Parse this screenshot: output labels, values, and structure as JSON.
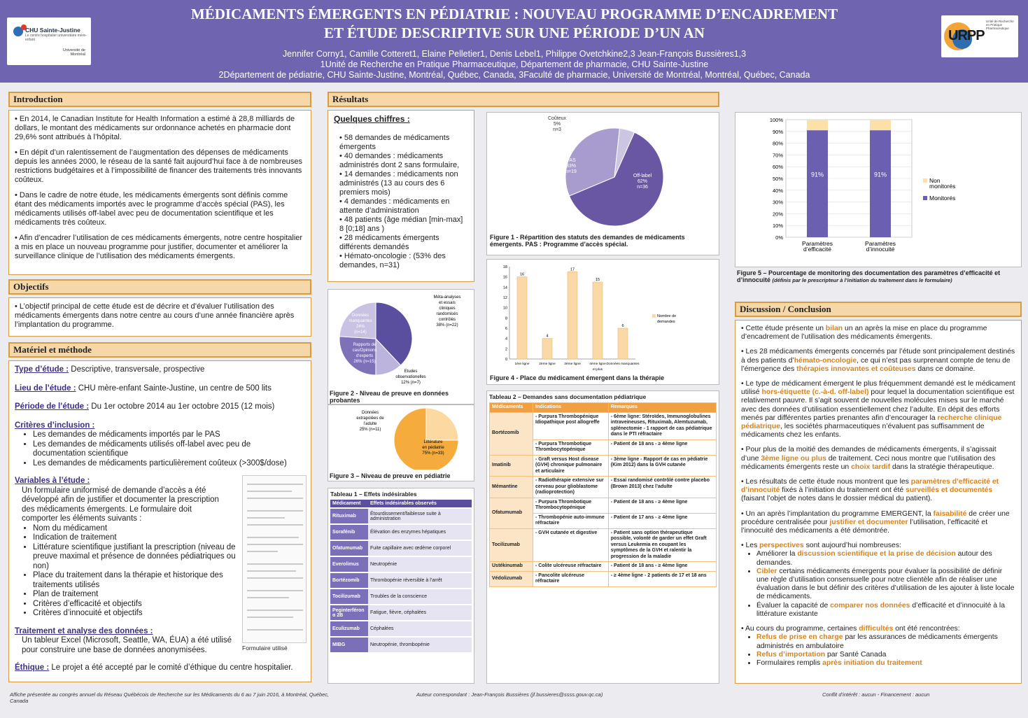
{
  "header": {
    "title_line1": "MÉDICAMENTS ÉMERGENTS EN PÉDIATRIE : NOUVEAU PROGRAMME D’ENCADREMENT",
    "title_line2": "ET ÉTUDE DESCRIPTIVE SUR UNE PÉRIODE D’UN AN",
    "authors": "Jennifer Corny1, Camille Cotteret1, Elaine Pelletier1, Denis Lebel1, Philippe Ovetchkine2,3 Jean-François Bussières1,3",
    "affil1": "1Unité de Recherche en Pratique Pharmaceutique, Département de pharmacie, CHU Sainte-Justine",
    "affil2": "2Département de pédiatrie, CHU Sainte-Justine, Montréal, Québec, Canada,  3Faculté de pharmacie, Université de Montréal, Montréal, Québec, Canada",
    "logo_left_name": "CHU Sainte-Justine",
    "logo_left_sub": "Le centre hospitalier universitaire mère-enfant",
    "logo_left_univ": "Université de Montréal",
    "logo_right_text": "URPP",
    "logo_right_sub": "Unité de Recherche en Pratique Pharmaceutique"
  },
  "intro": {
    "heading": "Introduction",
    "p1": "• En 2014, le Canadian Institute for Health Information a estimé à 28,8 milliards de dollars, le montant des médicaments sur ordonnance achetés en pharmacie dont 29,6% sont attribués à l’hôpital.",
    "p2": "• En dépit d’un ralentissement de l’augmentation des dépenses de médicaments depuis les années 2000, le réseau de la santé fait aujourd’hui face à de nombreuses restrictions budgétaires et à l’impossibilité de financer des traitements très innovants coûteux.",
    "p3": "• Dans le cadre de notre étude, les médicaments émergents sont définis comme étant des médicaments importés avec le programme d’accès spécial (PAS), les médicaments utilisés off-label avec peu de documentation scientifique et les médicaments très coûteux.",
    "p4": "• Afin d’encadrer l’utilisation de ces médicaments émergents, notre centre hospitalier a mis en place un nouveau programme pour justifier, documenter et améliorer la surveillance clinique de l’utilisation des médicaments émergents."
  },
  "objectifs": {
    "heading": "Objectifs",
    "p1": "• L’objectif principal de cette étude est de décrire et d’évaluer l’utilisation des médicaments émergents dans notre centre au cours d’une année financière après l’implantation du programme."
  },
  "methode": {
    "heading": "Matériel et méthode",
    "type_label": "Type d’étude :",
    "type_val": " Descriptive, transversale, prospective",
    "lieu_label": "Lieu de l’étude :",
    "lieu_val": " CHU mère-enfant Sainte-Justine, un centre de 500 lits",
    "periode_label": "Période de l’étude :",
    "periode_val": " Du 1er octobre 2014 au 1er octobre 2015 (12 mois)",
    "criteres_label": "Critères d’inclusion :",
    "crit1": "Les demandes de médicaments importés par le PAS",
    "crit2": "Les demandes de médicaments utilisés off-label avec peu de documentation scientifique",
    "crit3": "Les demandes de médicaments particulièrement coûteux (>300$/dose)",
    "variables_label": "Variables à l’étude :",
    "variables_intro": "Un formulaire uniformisé de demande d’accès a été développé afin de justifier et documenter la prescription des médicaments émergents. Le formulaire doit comporter les éléments suivants :",
    "var_items": [
      "Nom du médicament",
      "Indication de traitement",
      "Littérature scientifique justifiant la prescription (niveau de preuve maximal et présence de données pédiatriques ou non)",
      "Place du traitement dans la thérapie et historique des traitements utilisés",
      "Plan de traitement",
      "Critères d’efficacité et objectifs",
      "Critères d’innocuité et objectifs"
    ],
    "form_caption": "Formulaire utilisé",
    "traitement_label": "Traitement et analyse des données :",
    "traitement_val": "Un tableur Excel (Microsoft, Seattle, WA, ÉUA) a été utilisé pour construire une base de données anonymisées.",
    "ethique_label": "Éthique :",
    "ethique_val": " Le projet a été accepté par le comité d’éthique du centre hospitalier."
  },
  "resultats": {
    "heading": "Résultats",
    "chiffres_title": "Quelques chiffres :",
    "chiffres": [
      "58 demandes de médicaments émergents",
      "40 demandes : médicaments administrés dont 2 sans formulaire,",
      "14 demandes : médicaments non administrés (13 au cours des 6 premiers mois)",
      "4 demandes : médicaments en attente d’administration",
      "48 patients (âge médian [min-max] 8 [0;18] ans )",
      "28 médicaments émergents différents demandés",
      "Hémato-oncologie : (53% des demandes, n=31)"
    ]
  },
  "fig1": {
    "caption": "Figure 1 - Répartition des statuts des demandes de médicaments émergents. PAS : Programme d’accès spécial.",
    "labels": [
      "Off-label\n62%\nn=36",
      "PAS\n33%\nn=19",
      "Coûteux\n5%\nn=3"
    ]
  },
  "fig2": {
    "caption": "Figure 2 - Niveau de preuve en données probantes",
    "labels": [
      "Méta-analyses et essais cliniques randomisés contrôlés 38% (n=22)",
      "Etudes observationelles 12% (n=7)",
      "Rapports de cas/Opinions d’experts 26% (n=15)",
      "Données manquantes 24% (n=14)"
    ]
  },
  "fig3": {
    "caption": "Figure 3 – Niveau de preuve en pédiatrie",
    "labels": [
      "Données extrapolées de l’adulte 25% (n=11)",
      "Littérature en pédiatrie 75% (n=33)"
    ]
  },
  "fig4": {
    "caption": "Figure 4 - Place du médicament émergent dans la thérapie",
    "legend": "Nombre de demandes"
  },
  "fig5": {
    "caption_bold": "Figure 5 – Pourcentage de monitoring des documentation des paramètres d’efficacité et d’innocuité",
    "caption_ital": "(définis par le prescripteur à l’initiation du traitement dans le formulaire)",
    "legend_non": "Non monitorés",
    "legend_mon": "Monitorés"
  },
  "tableau1": {
    "title": "Tableau 1 – Effets indésirables",
    "headers": [
      "Médicament",
      "Effets indésirables observés"
    ],
    "rows": [
      [
        "Rituximab",
        "Étourdissement/faiblesse suite à administration"
      ],
      [
        "Sorafénib",
        "Élévation des enzymes hépatiques"
      ],
      [
        "Ofatumumab",
        "Fuite capillaire avec œdème corporel"
      ],
      [
        "Everolimus",
        "Neutropénie"
      ],
      [
        "Bortézomib",
        "Thrombopénie réversible à l’arrêt"
      ],
      [
        "Tocilizumab",
        "Troubles de la conscience"
      ],
      [
        "Peginterféron α 2B",
        "Fatigue, fièvre, céphalées"
      ],
      [
        "Eculizumab",
        "Céphalées"
      ],
      [
        "MIBG",
        "Neutropénie, thrombopénie"
      ]
    ]
  },
  "tableau2": {
    "title": "Tableau 2 – Demandes sans documentation pédiatrique",
    "headers": [
      "Médicaments",
      "Indications",
      "Remarques"
    ],
    "rows": [
      [
        "Bortézomib",
        "- Purpura Thrombopénique Idiopathique post allogreffe",
        "- 6ème ligne: Stéroïdes, Immunoglobulines intraveineuses, Rituximab, Alemtuzumab, splénectomie - 1 rapport de cas pédiatrique dans le PTI réfractaire"
      ],
      [
        "",
        "- Purpura Thrombotique Thrombocytopénique",
        "- Patient de 18 ans - ≥ 4ème ligne"
      ],
      [
        "Imatinib",
        "- Graft versus Host disease (GVH) chronique pulmonaire et articulaire",
        "- 3ème ligne - Rapport de cas en pédiatrie (Kim 2012) dans la GVH cutanée"
      ],
      [
        "Mémantine",
        "- Radiothérapie extensive sur cerveau pour glioblastome (radioprotection)",
        "- Essai randomisé contrôlé contre placebo (Brown 2013) chez l’adulte"
      ],
      [
        "Ofatumumab",
        "- Purpura Thrombotique Thrombocytopénique",
        "- Patient de 18 ans - ≥ 4ème ligne"
      ],
      [
        "",
        "- Thrombopénie auto-immune réfractaire",
        "- Patient de 17 ans - ≥ 4ème ligne"
      ],
      [
        "Tocilizumab",
        "- GVH cutanée et digestive",
        "- Patient sans option thérapeutique possible, volonté de garder un effet Graft versus Leukemia en coupant les symptômes de la GVH et ralentir la progression de la maladie"
      ],
      [
        "Ustékinumab",
        "- Colite ulcéreuse réfractaire",
        "- Patient de 18 ans - ≥ 4ème ligne"
      ],
      [
        "Védolizumab",
        "- Pancolite ulcéreuse réfractaire",
        "- ≥ 4ème ligne - 2 patients de 17 et 18 ans"
      ]
    ]
  },
  "discussion": {
    "heading": "Discussion / Conclusion",
    "p1a": "• Cette étude présente un ",
    "p1b": "bilan",
    "p1c": " un an après la mise en place du programme d’encadrement de l’utilisation des médicaments émergents.",
    "p2a": "• Les 28 médicaments émergents concernés par l’étude sont principalement destinés à des patients d’",
    "p2b": "hémato-oncologie",
    "p2c": ", ce qui n’est pas surprenant compte de tenu de l’émergence des ",
    "p2d": "thérapies innovantes et coûteuses",
    "p2e": " dans ce domaine.",
    "p3a": "• Le type de médicament émergent le plus fréquemment demandé est le médicament utilisé ",
    "p3b": "hors-étiquette (c.-à-d. off-label)",
    "p3c": " pour lequel la documentation scientifique est relativement pauvre. Il s’agit souvent de nouvelles molécules mises sur le marché avec des données d’utilisation essentiellement chez l’adulte. En dépit des efforts menés par différentes parties prenantes afin d’encourager la ",
    "p3d": "recherche clinique pédiatrique",
    "p3e": ", les sociétés pharmaceutiques n’évaluent pas suffisamment de médicaments chez les enfants.",
    "p4a": "• Pour plus de la moitié des demandes de médicaments émergents, il s’agissait d’une ",
    "p4b": "3ème ligne ou plus",
    "p4c": " de traitement. Ceci nous montre que l’utilisation des médicaments émergents reste un ",
    "p4d": "choix tardif",
    "p4e": " dans la stratégie thérapeutique.",
    "p5a": "• Les résultats de cette étude nous montrent que les ",
    "p5b": "paramètres d’efficacité et d’innocuité",
    "p5c": " fixés à l’initiation du traitement ont été ",
    "p5d": "surveillés et documentés",
    "p5e": " (faisant l’objet de notes dans le dossier médical du patient).",
    "p6a": "• Un an après l’implantation du programme EMERGENT, la ",
    "p6b": "faisabilité",
    "p6c": " de créer une procédure centralisée pour ",
    "p6d": "justifier et documenter",
    "p6e": " l’utilisation, l’efficacité et l’innocuité des médicaments a été démontrée.",
    "p7a": "• Les ",
    "p7b": "perspectives",
    "p7c": " sont aujourd’hui nombreuses:",
    "p7_1a": "Améliorer la ",
    "p7_1b": "discussion scientifique et la prise de décision",
    "p7_1c": " autour des demandes.",
    "p7_2a": "",
    "p7_2b": "Cibler",
    "p7_2c": " certains médicaments émergents pour évaluer la possibilité de définir une règle d’utilisation consensuelle pour notre clientèle afin de réaliser une évaluation dans le but définir des critères d’utilisation de les ajouter à liste locale de médicaments.",
    "p7_3a": "Évaluer la capacité de ",
    "p7_3b": "comparer nos données",
    "p7_3c": " d’efficacité et d’innocuité à la littérature existante",
    "p8a": "• Au cours du programme, certaines ",
    "p8b": "difficultés",
    "p8c": " ont été rencontrées:",
    "p8_1b": "Refus de prise en charge",
    "p8_1c": " par les assurances de médicaments émergents administrés en ambulatoire",
    "p8_2b": "Refus d’importation",
    "p8_2c": " par Santé Canada",
    "p8_3a": "Formulaires remplis ",
    "p8_3b": "après initiation du traitement"
  },
  "footer": {
    "left": "Affiche présentée au congrès annuel du Réseau Québécois de Recherche sur les Médicaments du 6 au 7 juin 2016, à Montréal, Québec, Canada",
    "mid": "Auteur correspondant : Jean-François Bussières (jf.bussieres@ssss.gouv.qc.ca)",
    "right": "Conflit d’intérêt : aucun - Financement : aucun"
  },
  "colors": {
    "header": "#6e64b0",
    "orange": "#d9821c",
    "purple_dark": "#5a4f9e"
  },
  "chart_data": [
    {
      "type": "pie",
      "title": "Figure 1",
      "categories": [
        "Off-label",
        "PAS",
        "Coûteux"
      ],
      "values": [
        62,
        33,
        5
      ],
      "counts": [
        36,
        19,
        3
      ]
    },
    {
      "type": "pie",
      "title": "Figure 2",
      "categories": [
        "Méta-analyses et essais cliniques randomisés contrôlés",
        "Etudes observationelles",
        "Rapports de cas/Opinions d’experts",
        "Données manquantes"
      ],
      "values": [
        38,
        12,
        26,
        24
      ],
      "counts": [
        22,
        7,
        15,
        14
      ]
    },
    {
      "type": "pie",
      "title": "Figure 3",
      "categories": [
        "Littérature en pédiatrie",
        "Données extrapolées de l’adulte"
      ],
      "values": [
        75,
        25
      ],
      "counts": [
        33,
        11
      ]
    },
    {
      "type": "bar",
      "title": "Figure 4",
      "categories": [
        "1ère ligne",
        "2ème ligne",
        "3ème ligne",
        "4ème ligne et plus",
        "Données manquantes"
      ],
      "values": [
        16,
        4,
        17,
        15,
        6
      ],
      "ylim": [
        0,
        18
      ],
      "yticks": [
        0,
        2,
        4,
        6,
        8,
        10,
        12,
        14,
        16,
        18
      ],
      "series_name": "Nombre de demandes"
    },
    {
      "type": "bar",
      "title": "Figure 5",
      "stacked": true,
      "categories": [
        "Paramètres d’efficacité",
        "Paramètres d’innocuité"
      ],
      "series": [
        {
          "name": "Monitorés",
          "values": [
            91,
            91
          ]
        },
        {
          "name": "Non monitorés",
          "values": [
            9,
            9
          ]
        }
      ],
      "labels": [
        "91%",
        "91%"
      ],
      "ylim": [
        0,
        100
      ],
      "yticks": [
        "0%",
        "10%",
        "20%",
        "30%",
        "40%",
        "50%",
        "60%",
        "70%",
        "80%",
        "90%",
        "100%"
      ]
    }
  ]
}
